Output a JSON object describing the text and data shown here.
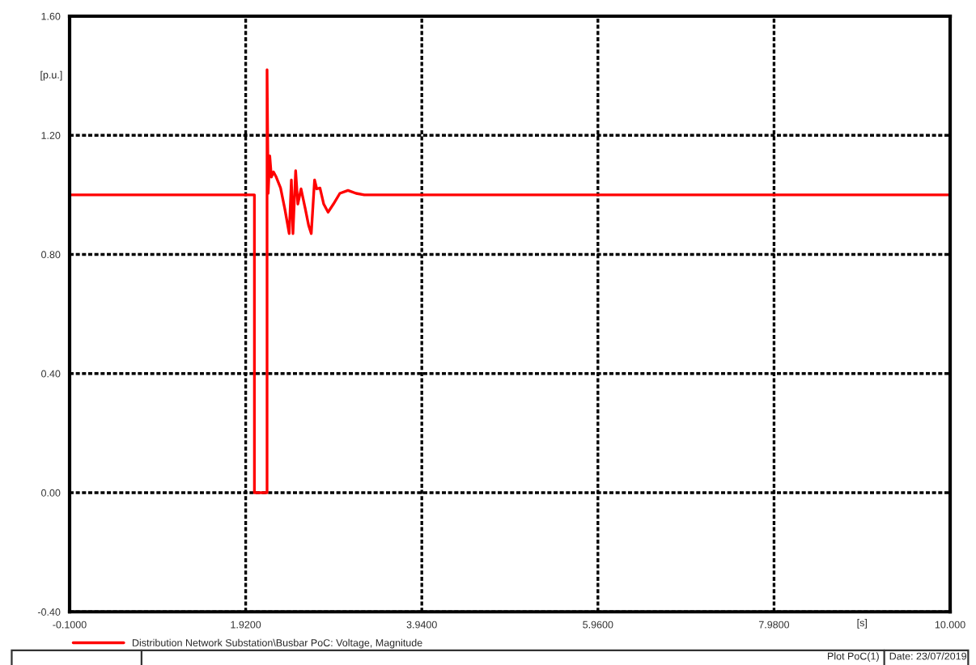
{
  "chart_data": {
    "type": "line",
    "xlabel": "[s]",
    "ylabel": "[p.u.]",
    "series": [
      {
        "name": "Distribution Network Substation\\Busbar PoC: Voltage, Magnitude",
        "color": "#ff0000",
        "x": [
          -0.1,
          2.02,
          2.02,
          2.165,
          2.165,
          2.178,
          2.196,
          2.215,
          2.239,
          2.27,
          2.32,
          2.37,
          2.419,
          2.444,
          2.462,
          2.493,
          2.518,
          2.555,
          2.605,
          2.642,
          2.672,
          2.71,
          2.735,
          2.772,
          2.815,
          2.865,
          2.926,
          3.0,
          3.093,
          3.186,
          3.28,
          10.0
        ],
        "values": [
          1.0,
          1.0,
          0.0,
          0.0,
          1.42,
          1.005,
          1.131,
          1.06,
          1.077,
          1.06,
          1.023,
          0.951,
          0.87,
          1.05,
          0.87,
          1.081,
          0.969,
          1.02,
          0.951,
          0.897,
          0.87,
          1.05,
          1.02,
          1.023,
          0.969,
          0.942,
          0.969,
          1.005,
          1.015,
          1.005,
          1.0,
          1.0
        ]
      }
    ],
    "xlim": [
      -0.1,
      10.0
    ],
    "xticks": [
      {
        "value": -0.1,
        "label": "-0.1000"
      },
      {
        "value": 1.92,
        "label": "1.9200"
      },
      {
        "value": 3.94,
        "label": "3.9400"
      },
      {
        "value": 5.96,
        "label": "5.9600"
      },
      {
        "value": 7.98,
        "label": "7.9800"
      },
      {
        "value": 10.0,
        "label": "10.000"
      }
    ],
    "ylim": [
      -0.4,
      1.6
    ],
    "yticks": [
      {
        "value": -0.4,
        "label": "-0.40"
      },
      {
        "value": 0.0,
        "label": "0.00"
      },
      {
        "value": 0.4,
        "label": "0.40"
      },
      {
        "value": 0.8,
        "label": "0.80"
      },
      {
        "value": 1.2,
        "label": "1.20"
      },
      {
        "value": 1.6,
        "label": "1.60"
      }
    ],
    "grid": true,
    "legend": "bottom",
    "line_style": "solid",
    "marker": "none",
    "annotations": [
      "Plot PoC(1)",
      "Date: 23/07/2019"
    ]
  }
}
